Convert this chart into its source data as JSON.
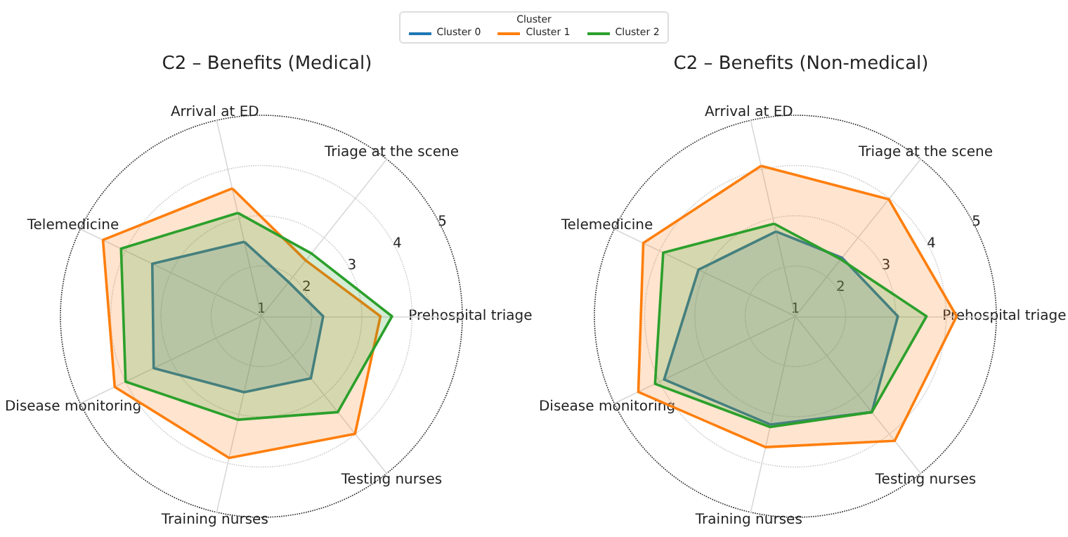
{
  "chart_data": [
    {
      "type": "radar",
      "title": "C2 – Benefits (Medical)",
      "legend": "top",
      "legend_title": "Cluster",
      "categories": [
        "Arrival at ED",
        "Triage at the scene",
        "Prehospital triage",
        "Testing nurses",
        "Training nurses",
        "Disease monitoring",
        "Telemedicine"
      ],
      "ylim": [
        1,
        5
      ],
      "yticks": [
        1,
        2,
        3,
        4,
        5
      ],
      "grid": true,
      "series": [
        {
          "name": "Cluster 0",
          "color": "#1f77b4",
          "values": [
            2.52,
            1.87,
            2.23,
            2.58,
            2.55,
            3.38,
            3.41
          ]
        },
        {
          "name": "Cluster 1",
          "color": "#ff7f0e",
          "values": [
            3.61,
            2.42,
            3.37,
            3.99,
            3.89,
            4.24,
            4.5
          ]
        },
        {
          "name": "Cluster 2",
          "color": "#2ca02c",
          "values": [
            3.11,
            2.6,
            3.6,
            3.44,
            3.11,
            4.0,
            4.1
          ]
        }
      ]
    },
    {
      "type": "radar",
      "title": "C2 – Benefits (Non-medical)",
      "categories": [
        "Arrival at ED",
        "Triage at the scene",
        "Prehospital triage",
        "Testing nurses",
        "Training nurses",
        "Disease monitoring",
        "Telemedicine"
      ],
      "ylim": [
        1,
        5
      ],
      "yticks": [
        1,
        2,
        3,
        4,
        5
      ],
      "grid": true,
      "series": [
        {
          "color": "#1f77b4",
          "values": [
            2.73,
            2.49,
            3.04,
            3.44,
            3.21,
            3.9,
            3.14
          ]
        },
        {
          "color": "#ff7f0e",
          "values": [
            4.07,
            3.98,
            4.21,
            4.17,
            3.67,
            4.47,
            4.36
          ]
        },
        {
          "color": "#2ca02c",
          "values": [
            2.89,
            2.45,
            3.61,
            3.44,
            3.26,
            4.1,
            3.92
          ]
        }
      ]
    }
  ]
}
